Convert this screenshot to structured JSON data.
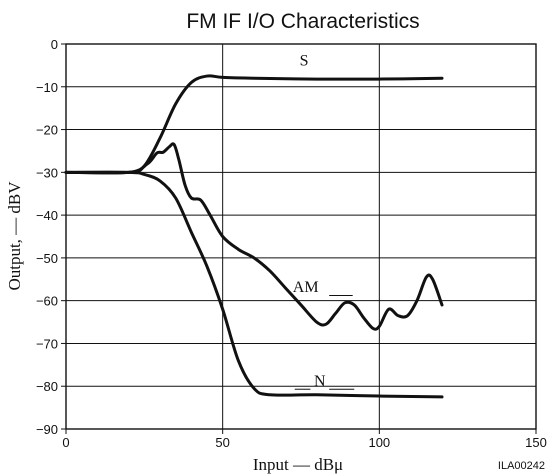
{
  "chart_data": {
    "type": "line",
    "title": "FM IF I/O Characteristics",
    "xlabel": "Input — dBμ",
    "ylabel": "Output, — dBV",
    "xlim": [
      0,
      150
    ],
    "ylim": [
      -90,
      0
    ],
    "xticks": [
      0,
      50,
      100,
      150
    ],
    "yticks": [
      0,
      -10,
      -20,
      -30,
      -40,
      -50,
      -60,
      -70,
      -80,
      -90
    ],
    "xtick_labels": [
      "0",
      "50",
      "100",
      "150"
    ],
    "ytick_labels": [
      "0",
      "−10",
      "−20",
      "−30",
      "−40",
      "−50",
      "−60",
      "−70",
      "−80",
      "−90"
    ],
    "grid": "vertical lines at 50 and 100, horizontal lines every 10",
    "figure_id": "ILA00242",
    "series": [
      {
        "name": "S",
        "x": [
          0,
          20,
          25,
          30,
          35,
          40,
          45,
          50,
          60,
          80,
          100,
          120
        ],
        "y": [
          -30,
          -30,
          -28.5,
          -22,
          -14,
          -9,
          -7.5,
          -7.8,
          -8,
          -8.2,
          -8.2,
          -8
        ]
      },
      {
        "name": "AM",
        "x": [
          0,
          20,
          26,
          29,
          31,
          33,
          34.5,
          36,
          38,
          40,
          43,
          46,
          50,
          55,
          60,
          65,
          70,
          75,
          80,
          83,
          86,
          89,
          92,
          95,
          98,
          100,
          103,
          106,
          109,
          112,
          115,
          117,
          120
        ],
        "y": [
          -30,
          -30,
          -28,
          -25.5,
          -25.3,
          -24,
          -23.5,
          -27,
          -33,
          -36,
          -36.5,
          -40,
          -45,
          -48,
          -50,
          -53,
          -57,
          -61,
          -65,
          -65.5,
          -63,
          -60.5,
          -61,
          -64,
          -66.5,
          -66,
          -62,
          -63.5,
          -63.5,
          -60,
          -54.5,
          -55,
          -61
        ]
      },
      {
        "name": "N",
        "x": [
          0,
          20,
          25,
          30,
          35,
          40,
          45,
          50,
          55,
          60,
          65,
          80,
          100,
          120
        ],
        "y": [
          -30,
          -30,
          -30.5,
          -32,
          -36,
          -44,
          -52,
          -62,
          -74,
          -80.5,
          -82,
          -82,
          -82.3,
          -82.5
        ]
      }
    ],
    "annotations": [
      {
        "text": "S",
        "series": "S"
      },
      {
        "text": "AM",
        "series": "AM"
      },
      {
        "text": "N",
        "series": "N"
      }
    ]
  }
}
